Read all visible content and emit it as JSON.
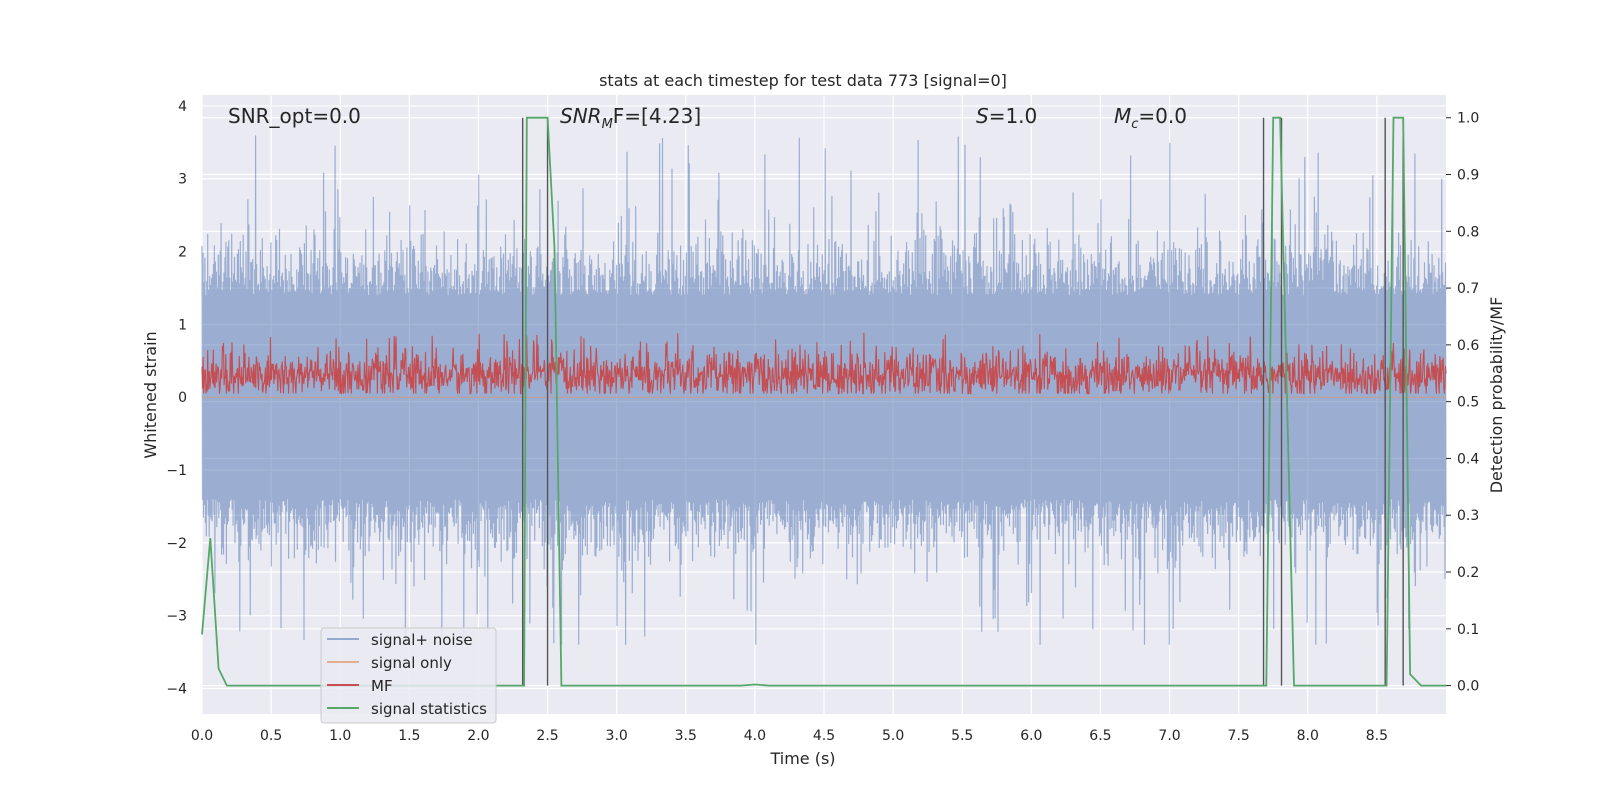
{
  "chart_data": {
    "type": "line",
    "title": "stats at each timestep for test data 773 [signal=0]",
    "xlabel": "Time (s)",
    "ylabel": "Whitened strain",
    "ylabel_right": "Detection probability/MF",
    "xlim": [
      0,
      9
    ],
    "ylim": [
      -4.35,
      4.15
    ],
    "ylim_right": [
      -0.05,
      1.04
    ],
    "x_ticks": [
      "0.0",
      "0.5",
      "1.0",
      "1.5",
      "2.0",
      "2.5",
      "3.0",
      "3.5",
      "4.0",
      "4.5",
      "5.0",
      "5.5",
      "6.0",
      "6.5",
      "7.0",
      "7.5",
      "8.0",
      "8.5"
    ],
    "y_ticks": [
      "4",
      "3",
      "2",
      "1",
      "0",
      "−1",
      "−2",
      "−3",
      "−4"
    ],
    "y_ticks_right": [
      "1.0",
      "0.9",
      "0.8",
      "0.7",
      "0.6",
      "0.5",
      "0.4",
      "0.3",
      "0.2",
      "0.1",
      "0.0"
    ],
    "grid": true,
    "legend_position": "lower-left",
    "annotations": {
      "snr_opt": "SNR_opt=0.0",
      "snr_mf_prefix": "SNR",
      "snr_mf_sub": "M",
      "snr_mf_suffix": "F=[4.23]",
      "s_var": "S",
      "s_value": "=1.0",
      "mc_var": "M",
      "mc_sub": "c",
      "mc_value": "=0.0"
    },
    "series": [
      {
        "name": "signal+ noise",
        "color": "#4c72b0",
        "kind": "noise",
        "range": [
          -3.4,
          3.7
        ],
        "typical_amplitude": 1.7
      },
      {
        "name": "signal only",
        "color": "#dd8452",
        "kind": "flat",
        "value": 0.0
      },
      {
        "name": "MF",
        "color": "#c44e52",
        "kind": "noise-band",
        "range": [
          0.05,
          0.9
        ],
        "center": 0.3
      },
      {
        "name": "signal statistics",
        "color": "#55a868",
        "axis": "right",
        "x": [
          0.0,
          0.06,
          0.12,
          0.18,
          2.3,
          2.33,
          2.35,
          2.5,
          2.55,
          2.6,
          3.9,
          4.0,
          4.1,
          7.66,
          7.7,
          7.75,
          7.8,
          7.9,
          8.54,
          8.57,
          8.62,
          8.69,
          8.74,
          8.82,
          9.0
        ],
        "y": [
          0.09,
          0.26,
          0.03,
          0.0,
          0.0,
          0.0,
          1.0,
          1.0,
          0.77,
          0.0,
          0.0,
          0.002,
          0.0,
          0.0,
          0.0,
          1.0,
          1.0,
          0.0,
          0.0,
          0.0,
          1.0,
          1.0,
          0.02,
          0.0,
          0.0
        ]
      }
    ],
    "vertical_markers": [
      2.32,
      2.5,
      7.68,
      7.81,
      8.56,
      8.69
    ]
  }
}
